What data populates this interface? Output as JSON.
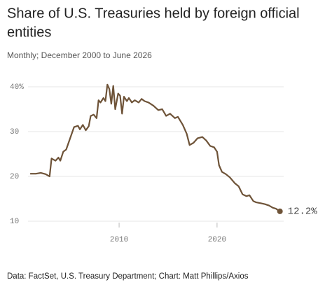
{
  "chart_data": {
    "type": "line",
    "title_lines": [
      "Share of U.S. Treasuries held by foreign official",
      "entities"
    ],
    "subtitle": "Monthly; December 2000 to June 2026",
    "source": "Data: FactSet, U.S. Treasury Department; Chart: Matt Phillips/Axios",
    "end_label": "12.2%",
    "color": "#6e5338",
    "grid": true,
    "xlim": [
      2000.7,
      2026.8
    ],
    "xticks": [
      2010,
      2020
    ],
    "ylim": [
      10,
      40
    ],
    "yticks": [
      10,
      20,
      30,
      {
        "value": 40,
        "label": "40%"
      }
    ],
    "x": [
      2000.92,
      2001.5,
      2002.0,
      2002.5,
      2002.9,
      2003.1,
      2003.5,
      2003.8,
      2004.0,
      2004.3,
      2004.6,
      2005.0,
      2005.4,
      2005.8,
      2006.0,
      2006.3,
      2006.6,
      2006.9,
      2007.1,
      2007.4,
      2007.7,
      2007.9,
      2008.1,
      2008.4,
      2008.6,
      2008.8,
      2009.0,
      2009.2,
      2009.4,
      2009.6,
      2009.9,
      2010.1,
      2010.3,
      2010.5,
      2010.8,
      2011.0,
      2011.3,
      2011.6,
      2012.0,
      2012.3,
      2012.6,
      2013.0,
      2013.5,
      2014.0,
      2014.4,
      2014.8,
      2015.2,
      2015.7,
      2016.0,
      2016.5,
      2016.9,
      2017.2,
      2017.6,
      2018.0,
      2018.5,
      2018.9,
      2019.3,
      2019.7,
      2020.0,
      2020.2,
      2020.5,
      2020.9,
      2021.3,
      2021.8,
      2022.2,
      2022.6,
      2023.0,
      2023.3,
      2023.7,
      2024.0,
      2024.5,
      2024.9,
      2025.3,
      2025.7,
      2026.0,
      2026.42
    ],
    "values": [
      20.6,
      20.6,
      20.8,
      20.5,
      20.0,
      24.0,
      23.5,
      24.2,
      23.5,
      25.5,
      26.0,
      28.5,
      31.0,
      31.3,
      30.5,
      31.5,
      30.3,
      31.2,
      33.5,
      33.8,
      33.0,
      37.0,
      36.5,
      37.5,
      36.8,
      40.5,
      39.5,
      36.2,
      40.2,
      35.0,
      38.5,
      38.0,
      34.0,
      37.8,
      36.8,
      37.5,
      36.5,
      37.0,
      36.5,
      37.3,
      36.8,
      36.5,
      35.8,
      34.8,
      35.0,
      33.5,
      34.0,
      33.0,
      33.3,
      31.5,
      29.5,
      27.0,
      27.5,
      28.5,
      28.8,
      28.0,
      26.8,
      26.5,
      25.5,
      22.5,
      21.0,
      20.5,
      19.8,
      18.5,
      17.8,
      16.0,
      15.6,
      15.8,
      14.5,
      14.2,
      14.0,
      13.8,
      13.5,
      13.0,
      12.8,
      12.2
    ]
  }
}
